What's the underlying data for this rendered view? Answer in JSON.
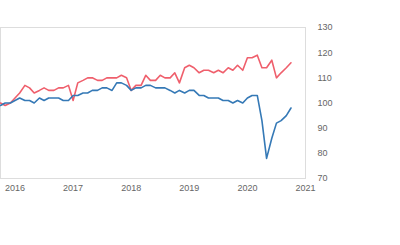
{
  "chart_data": {
    "type": "line",
    "x": [
      2015.75,
      2015.83,
      2015.92,
      2016.0,
      2016.08,
      2016.17,
      2016.25,
      2016.33,
      2016.42,
      2016.5,
      2016.58,
      2016.67,
      2016.75,
      2016.83,
      2016.92,
      2017.0,
      2017.08,
      2017.17,
      2017.25,
      2017.33,
      2017.42,
      2017.5,
      2017.58,
      2017.67,
      2017.75,
      2017.83,
      2017.92,
      2018.0,
      2018.08,
      2018.17,
      2018.25,
      2018.33,
      2018.42,
      2018.5,
      2018.58,
      2018.67,
      2018.75,
      2018.83,
      2018.92,
      2019.0,
      2019.08,
      2019.17,
      2019.25,
      2019.33,
      2019.42,
      2019.5,
      2019.58,
      2019.67,
      2019.75,
      2019.83,
      2019.92,
      2020.0,
      2020.08,
      2020.17,
      2020.25,
      2020.33,
      2020.42,
      2020.5,
      2020.58,
      2020.67,
      2020.75
    ],
    "series": [
      {
        "color": "#ef5f6c",
        "values": [
          100,
          99,
          100,
          102,
          104,
          107,
          106,
          104,
          105,
          106,
          105,
          105,
          106,
          106,
          107,
          101,
          108,
          109,
          110,
          110,
          109,
          109,
          110,
          110,
          110,
          111,
          110,
          105,
          107,
          107,
          111,
          109,
          109,
          111,
          110,
          110,
          112,
          108,
          114,
          115,
          114,
          112,
          113,
          113,
          112,
          113,
          112,
          114,
          113,
          115,
          113,
          118,
          118,
          119,
          114,
          114,
          117,
          110,
          112,
          114,
          116
        ]
      },
      {
        "color": "#3579b6",
        "values": [
          99,
          100,
          100,
          101,
          102,
          101,
          101,
          100,
          102,
          101,
          102,
          102,
          102,
          101,
          101,
          103,
          103,
          104,
          104,
          105,
          105,
          106,
          106,
          105,
          108,
          108,
          107,
          105,
          106,
          106,
          107,
          107,
          106,
          106,
          106,
          105,
          104,
          105,
          104,
          105,
          105,
          103,
          103,
          102,
          102,
          102,
          101,
          101,
          100,
          101,
          100,
          102,
          103,
          103,
          93,
          78,
          86,
          92,
          93,
          95,
          98
        ]
      }
    ],
    "xlim": [
      2015.75,
      2021
    ],
    "xticks": [
      2016,
      2017,
      2018,
      2019,
      2020,
      2021
    ],
    "ylim": [
      70,
      130
    ],
    "yticks": [
      70,
      80,
      90,
      100,
      110,
      120,
      130
    ],
    "grid": false
  }
}
